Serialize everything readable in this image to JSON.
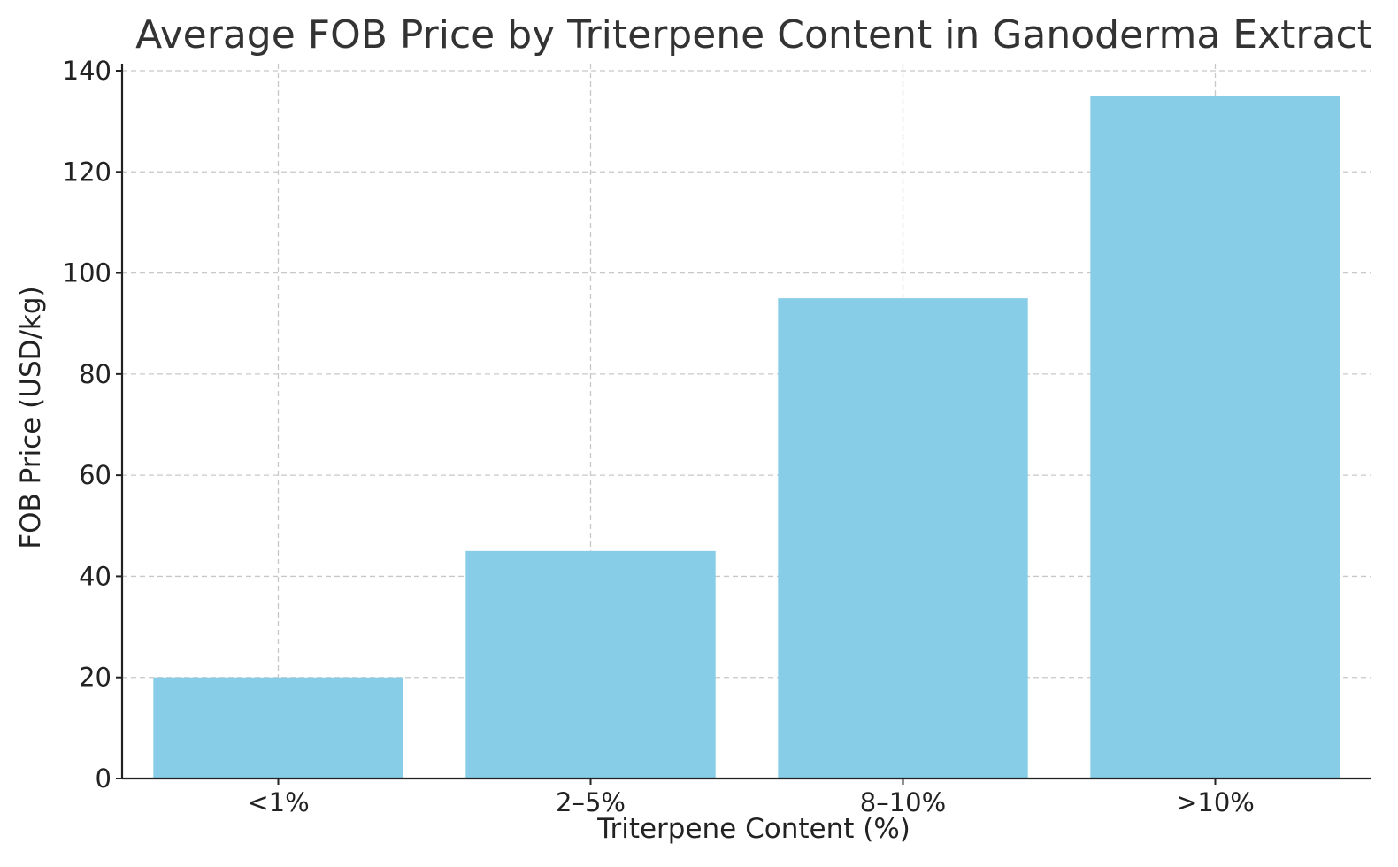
{
  "chart_data": {
    "type": "bar",
    "title": "Average FOB Price by Triterpene Content in Ganoderma Extract",
    "xlabel": "Triterpene Content (%)",
    "ylabel": "FOB Price (USD/kg)",
    "categories": [
      "<1%",
      "2–5%",
      "8–10%",
      ">10%"
    ],
    "values": [
      20,
      45,
      95,
      135
    ],
    "ylim": [
      0,
      140
    ],
    "yticks": [
      0,
      20,
      40,
      60,
      80,
      100,
      120,
      140
    ],
    "grid": true,
    "bar_color": "#87CDE8"
  }
}
